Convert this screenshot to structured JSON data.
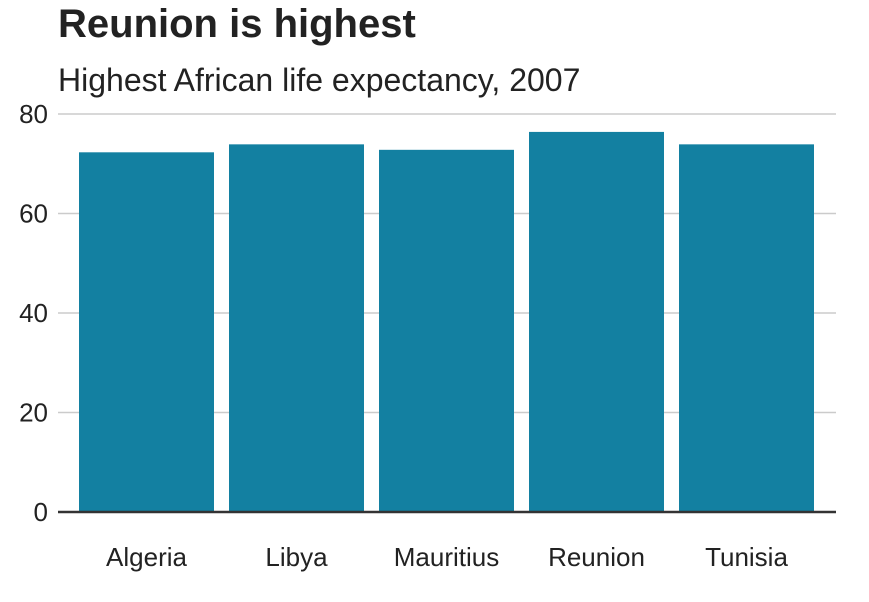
{
  "chart_data": {
    "type": "bar",
    "title": "Reunion is highest",
    "subtitle": "Highest African life expectancy, 2007",
    "categories": [
      "Algeria",
      "Libya",
      "Mauritius",
      "Reunion",
      "Tunisia"
    ],
    "values": [
      72.3,
      73.9,
      72.8,
      76.4,
      73.9
    ],
    "xlabel": "",
    "ylabel": "",
    "ylim": [
      0,
      80
    ],
    "yticks": [
      0,
      20,
      40,
      60,
      80
    ],
    "grid": true,
    "legend": "none",
    "bar_color": "#1380A1",
    "grid_color": "#cbcbcb",
    "baseline_color": "#333333"
  }
}
